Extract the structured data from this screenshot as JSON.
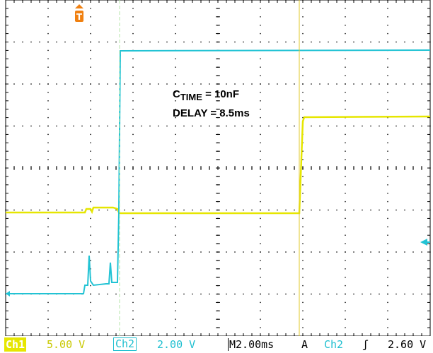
{
  "annotations": {
    "ctime_prefix": "C",
    "ctime_sub": "TIME",
    "ctime_value": " = 10nF",
    "delay": "DELAY = 8.5ms"
  },
  "status": {
    "ch1_label": "Ch1",
    "ch1_scale": "5.00 V",
    "ch2_label": "Ch2",
    "ch2_scale": "2.00 V",
    "time_prefix": "M",
    "time_scale": "2.00ms",
    "trigger_mode": "A",
    "trigger_source": "Ch2",
    "trigger_slope": "ʃ",
    "trigger_level": "2.60 V"
  },
  "colors": {
    "ch1": "#e6e600",
    "ch2": "#22c3d4",
    "grid": "#000000"
  },
  "markers": {
    "trigger_marker": "T",
    "trigger_level_arrow": "left-arrow-icon"
  }
}
